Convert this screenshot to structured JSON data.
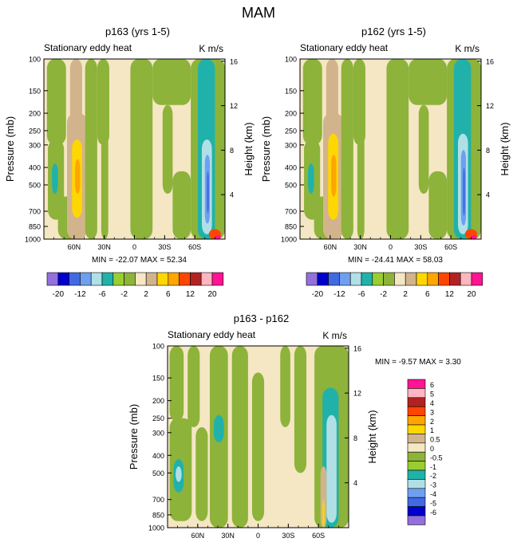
{
  "figure_title": "MAM",
  "chart_data": [
    {
      "id": "panel1",
      "type": "heatmap",
      "title": "p163 (yrs 1-5)",
      "subtitle_left": "Stationary eddy heat",
      "subtitle_right": "K m/s",
      "ylabel": "Pressure (mb)",
      "ylabel_right": "Height (km)",
      "xticks": [
        "60N",
        "30N",
        "0",
        "30S",
        "60S"
      ],
      "xtick_values": [
        60,
        30,
        0,
        -30,
        -60
      ],
      "xlim": [
        90,
        -90
      ],
      "yticks": [
        "100",
        "150",
        "200",
        "250",
        "300",
        "400",
        "500",
        "700",
        "850",
        "1000"
      ],
      "ytick_values": [
        100,
        150,
        200,
        250,
        300,
        400,
        500,
        700,
        850,
        1000
      ],
      "ylim": [
        100,
        1000
      ],
      "height_ticks": [
        "4",
        "8",
        "12",
        "16"
      ],
      "height_values": [
        4,
        8,
        12,
        16
      ],
      "min_label": "MIN = -22.07",
      "max_label": "MAX =  52.34",
      "min": -22.07,
      "max": 52.34,
      "regions": [
        {
          "lat": [
            90,
            -90
          ],
          "p": [
            100,
            1000
          ],
          "level": 0
        },
        {
          "lat": [
            87,
            68
          ],
          "p": [
            100,
            300
          ],
          "level": -1
        },
        {
          "lat": [
            86,
            70
          ],
          "p": [
            280,
            780
          ],
          "level": -1
        },
        {
          "lat": [
            82,
            76
          ],
          "p": [
            380,
            560
          ],
          "level": -2
        },
        {
          "lat": [
            76,
            56
          ],
          "p": [
            580,
            1000
          ],
          "level": -1
        },
        {
          "lat": [
            64,
            52
          ],
          "p": [
            100,
            240
          ],
          "level": 1
        },
        {
          "lat": [
            67,
            47
          ],
          "p": [
            200,
            1000
          ],
          "level": 1
        },
        {
          "lat": [
            62,
            52
          ],
          "p": [
            280,
            760
          ],
          "level": 2
        },
        {
          "lat": [
            59,
            54
          ],
          "p": [
            360,
            560
          ],
          "level": 3
        },
        {
          "lat": [
            49,
            37
          ],
          "p": [
            100,
            1000
          ],
          "level": -1
        },
        {
          "lat": [
            37,
            25
          ],
          "p": [
            100,
            300
          ],
          "level": -1
        },
        {
          "lat": [
            33,
            26
          ],
          "p": [
            260,
            1000
          ],
          "level": -1
        },
        {
          "lat": [
            4,
            -18
          ],
          "p": [
            100,
            1000
          ],
          "level": -1
        },
        {
          "lat": [
            -18,
            -56
          ],
          "p": [
            100,
            180
          ],
          "level": -1
        },
        {
          "lat": [
            -28,
            -38
          ],
          "p": [
            180,
            560
          ],
          "level": -1
        },
        {
          "lat": [
            -38,
            -56
          ],
          "p": [
            420,
            1000
          ],
          "level": -1
        },
        {
          "lat": [
            -56,
            -90
          ],
          "p": [
            100,
            1000
          ],
          "level": -1
        },
        {
          "lat": [
            -63,
            -80
          ],
          "p": [
            100,
            1000
          ],
          "level": -2
        },
        {
          "lat": [
            -67,
            -77
          ],
          "p": [
            280,
            940
          ],
          "level": -3
        },
        {
          "lat": [
            -70,
            -75
          ],
          "p": [
            340,
            820
          ],
          "level": -4
        },
        {
          "lat": [
            -72,
            -74
          ],
          "p": [
            420,
            720
          ],
          "level": -5
        },
        {
          "lat": [
            -74,
            -86
          ],
          "p": [
            880,
            1000
          ],
          "level": 4
        },
        {
          "lat": [
            -80,
            -86
          ],
          "p": [
            950,
            1000
          ],
          "level": 6
        }
      ]
    },
    {
      "id": "panel2",
      "type": "heatmap",
      "title": "p162 (yrs 1-5)",
      "subtitle_left": "Stationary eddy heat",
      "subtitle_right": "K m/s",
      "ylabel": "Pressure (mb)",
      "ylabel_right": "Height (km)",
      "xticks": [
        "60N",
        "30N",
        "0",
        "30S",
        "60S"
      ],
      "xtick_values": [
        60,
        30,
        0,
        -30,
        -60
      ],
      "xlim": [
        90,
        -90
      ],
      "yticks": [
        "100",
        "150",
        "200",
        "250",
        "300",
        "400",
        "500",
        "700",
        "850",
        "1000"
      ],
      "ytick_values": [
        100,
        150,
        200,
        250,
        300,
        400,
        500,
        700,
        850,
        1000
      ],
      "ylim": [
        100,
        1000
      ],
      "height_ticks": [
        "4",
        "8",
        "12",
        "16"
      ],
      "height_values": [
        4,
        8,
        12,
        16
      ],
      "min_label": "MIN = -24.41",
      "max_label": "MAX =  58.03",
      "min": -24.41,
      "max": 58.03,
      "regions": [
        {
          "lat": [
            90,
            -90
          ],
          "p": [
            100,
            1000
          ],
          "level": 0
        },
        {
          "lat": [
            87,
            68
          ],
          "p": [
            100,
            300
          ],
          "level": -1
        },
        {
          "lat": [
            86,
            70
          ],
          "p": [
            280,
            780
          ],
          "level": -1
        },
        {
          "lat": [
            82,
            76
          ],
          "p": [
            380,
            560
          ],
          "level": -2
        },
        {
          "lat": [
            76,
            56
          ],
          "p": [
            580,
            1000
          ],
          "level": -1
        },
        {
          "lat": [
            64,
            52
          ],
          "p": [
            100,
            240
          ],
          "level": 1
        },
        {
          "lat": [
            67,
            47
          ],
          "p": [
            200,
            1000
          ],
          "level": 1
        },
        {
          "lat": [
            62,
            52
          ],
          "p": [
            260,
            780
          ],
          "level": 2
        },
        {
          "lat": [
            59,
            54
          ],
          "p": [
            340,
            580
          ],
          "level": 3
        },
        {
          "lat": [
            49,
            37
          ],
          "p": [
            100,
            1000
          ],
          "level": -1
        },
        {
          "lat": [
            37,
            25
          ],
          "p": [
            100,
            300
          ],
          "level": -1
        },
        {
          "lat": [
            33,
            26
          ],
          "p": [
            260,
            1000
          ],
          "level": -1
        },
        {
          "lat": [
            4,
            -18
          ],
          "p": [
            100,
            1000
          ],
          "level": -1
        },
        {
          "lat": [
            -18,
            -56
          ],
          "p": [
            100,
            180
          ],
          "level": -1
        },
        {
          "lat": [
            -28,
            -38
          ],
          "p": [
            180,
            560
          ],
          "level": -1
        },
        {
          "lat": [
            -38,
            -56
          ],
          "p": [
            420,
            1000
          ],
          "level": -1
        },
        {
          "lat": [
            -56,
            -90
          ],
          "p": [
            100,
            1000
          ],
          "level": -1
        },
        {
          "lat": [
            -63,
            -80
          ],
          "p": [
            100,
            1000
          ],
          "level": -2
        },
        {
          "lat": [
            -67,
            -77
          ],
          "p": [
            260,
            940
          ],
          "level": -3
        },
        {
          "lat": [
            -70,
            -75
          ],
          "p": [
            320,
            840
          ],
          "level": -4
        },
        {
          "lat": [
            -72,
            -74
          ],
          "p": [
            400,
            740
          ],
          "level": -5
        },
        {
          "lat": [
            -74,
            -86
          ],
          "p": [
            880,
            1000
          ],
          "level": 4
        },
        {
          "lat": [
            -80,
            -86
          ],
          "p": [
            950,
            1000
          ],
          "level": 6
        }
      ]
    },
    {
      "id": "panel3",
      "type": "heatmap",
      "title": "p163 - p162",
      "subtitle_left": "Stationary eddy heat",
      "subtitle_right": "K m/s",
      "ylabel": "Pressure (mb)",
      "ylabel_right": "Height (km)",
      "xticks": [
        "60N",
        "30N",
        "0",
        "30S",
        "60S"
      ],
      "xtick_values": [
        60,
        30,
        0,
        -30,
        -60
      ],
      "xlim": [
        90,
        -90
      ],
      "yticks": [
        "100",
        "150",
        "200",
        "250",
        "300",
        "400",
        "500",
        "700",
        "850",
        "1000"
      ],
      "ytick_values": [
        100,
        150,
        200,
        250,
        300,
        400,
        500,
        700,
        850,
        1000
      ],
      "ylim": [
        100,
        1000
      ],
      "height_ticks": [
        "4",
        "8",
        "12",
        "16"
      ],
      "height_values": [
        4,
        8,
        12,
        16
      ],
      "min_label": "MIN =  -9.57",
      "max_label": "MAX =   3.30",
      "min": -9.57,
      "max": 3.3,
      "regions": [
        {
          "lat": [
            90,
            -90
          ],
          "p": [
            100,
            1000
          ],
          "level": 0
        },
        {
          "lat": [
            88,
            74
          ],
          "p": [
            100,
            260
          ],
          "level": -1
        },
        {
          "lat": [
            88,
            66
          ],
          "p": [
            250,
            920
          ],
          "level": -1
        },
        {
          "lat": [
            84,
            74
          ],
          "p": [
            420,
            640
          ],
          "level": -2
        },
        {
          "lat": [
            82,
            76
          ],
          "p": [
            460,
            560
          ],
          "level": -3
        },
        {
          "lat": [
            70,
            58
          ],
          "p": [
            100,
            280
          ],
          "level": -1
        },
        {
          "lat": [
            62,
            50
          ],
          "p": [
            280,
            920
          ],
          "level": -1
        },
        {
          "lat": [
            48,
            30
          ],
          "p": [
            100,
            1000
          ],
          "level": -1
        },
        {
          "lat": [
            44,
            34
          ],
          "p": [
            240,
            340
          ],
          "level": -2
        },
        {
          "lat": [
            26,
            10
          ],
          "p": [
            100,
            1000
          ],
          "level": -1
        },
        {
          "lat": [
            6,
            -6
          ],
          "p": [
            140,
            920
          ],
          "level": -1
        },
        {
          "lat": [
            -22,
            -32
          ],
          "p": [
            100,
            280
          ],
          "level": -1
        },
        {
          "lat": [
            -36,
            -48
          ],
          "p": [
            100,
            500
          ],
          "level": -1
        },
        {
          "lat": [
            -56,
            -90
          ],
          "p": [
            100,
            1000
          ],
          "level": -1
        },
        {
          "lat": [
            -64,
            -80
          ],
          "p": [
            170,
            1000
          ],
          "level": -2
        },
        {
          "lat": [
            -68,
            -78
          ],
          "p": [
            240,
            940
          ],
          "level": -3
        },
        {
          "lat": [
            -62,
            -68
          ],
          "p": [
            460,
            1000
          ],
          "level": 1
        },
        {
          "lat": [
            -64,
            -66
          ],
          "p": [
            700,
            1000
          ],
          "level": 2
        }
      ]
    }
  ],
  "legend_top": {
    "labels": [
      "-20",
      "-12",
      "-6",
      "-2",
      "2",
      "6",
      "12",
      "20"
    ],
    "colors": [
      "#9370db",
      "#0000cd",
      "#4169e1",
      "#6f9ff0",
      "#b0e0e6",
      "#20b2aa",
      "#9acd32",
      "#8db33a",
      "#f5e6c4",
      "#d2b48c",
      "#ffd700",
      "#ffa500",
      "#ff4500",
      "#b22222",
      "#ffb6c1",
      "#ff1493"
    ]
  },
  "legend_diff": {
    "labels": [
      "6",
      "5",
      "4",
      "3",
      "2",
      "1",
      "0.5",
      "0",
      "-0.5",
      "-1",
      "-2",
      "-3",
      "-4",
      "-5",
      "-6"
    ],
    "colors": [
      "#ff1493",
      "#ffb6c1",
      "#b22222",
      "#ff4500",
      "#ffa500",
      "#ffd700",
      "#d2b48c",
      "#f5e6c4",
      "#8db33a",
      "#9acd32",
      "#20b2aa",
      "#b0e0e6",
      "#6f9ff0",
      "#4169e1",
      "#0000cd",
      "#9370db"
    ]
  },
  "colors": {
    "level_-6": "#9370db",
    "level_-5": "#4169e1",
    "level_-4": "#6f9ff0",
    "level_-3": "#b0e0e6",
    "level_-2": "#20b2aa",
    "level_-1": "#8db33a",
    "level_0": "#f5e6c4",
    "level_1": "#d2b48c",
    "level_2": "#ffd700",
    "level_3": "#ffa500",
    "level_4": "#ff4500",
    "level_5": "#b22222",
    "level_6": "#ff1493"
  }
}
